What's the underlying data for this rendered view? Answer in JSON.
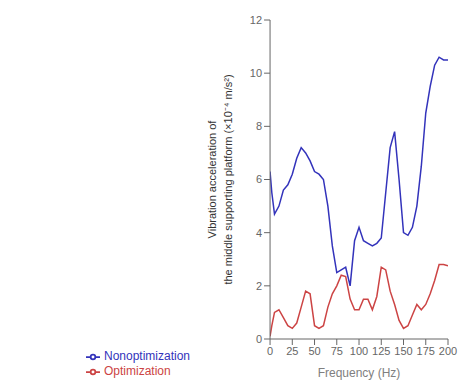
{
  "chart_data": {
    "type": "line",
    "xlabel": "Frequency (Hz)",
    "ylabel": [
      "Vibration acceleration of",
      "the middle supporting platform (×10⁻⁴ m/s²)"
    ],
    "x": [
      0,
      2,
      5,
      10,
      15,
      20,
      25,
      30,
      35,
      40,
      45,
      50,
      55,
      60,
      65,
      70,
      75,
      80,
      85,
      90,
      95,
      100,
      105,
      110,
      115,
      120,
      125,
      130,
      135,
      140,
      145,
      150,
      155,
      160,
      165,
      170,
      175,
      180,
      185,
      190,
      195,
      200
    ],
    "series": [
      {
        "name": "Nonoptimization",
        "color": "#3333bb",
        "values": [
          6.3,
          5.5,
          4.7,
          5.0,
          5.6,
          5.8,
          6.2,
          6.8,
          7.2,
          7.0,
          6.7,
          6.3,
          6.2,
          6.0,
          5.0,
          3.5,
          2.5,
          2.6,
          2.7,
          2.0,
          3.7,
          4.2,
          3.7,
          3.6,
          3.5,
          3.6,
          3.8,
          5.5,
          7.2,
          7.8,
          6.0,
          4.0,
          3.9,
          4.2,
          5.0,
          6.5,
          8.5,
          9.5,
          10.3,
          10.6,
          10.5,
          10.5
        ]
      },
      {
        "name": "Optimization",
        "color": "#cc4444",
        "values": [
          0.1,
          0.5,
          1.0,
          1.1,
          0.8,
          0.5,
          0.4,
          0.6,
          1.2,
          1.8,
          1.7,
          0.5,
          0.4,
          0.5,
          1.2,
          1.7,
          2.0,
          2.4,
          2.35,
          1.5,
          1.1,
          1.1,
          1.5,
          1.5,
          1.1,
          1.6,
          2.7,
          2.6,
          1.8,
          1.3,
          0.7,
          0.4,
          0.5,
          0.9,
          1.3,
          1.1,
          1.3,
          1.7,
          2.2,
          2.8,
          2.8,
          2.75
        ]
      }
    ],
    "xlim": [
      0,
      200
    ],
    "ylim": [
      0,
      12
    ],
    "xticks": [
      0,
      25,
      50,
      75,
      100,
      125,
      150,
      175,
      200
    ],
    "yticks": [
      0,
      2,
      4,
      6,
      8,
      10,
      12
    ],
    "grid": false,
    "legend": "lower left"
  }
}
